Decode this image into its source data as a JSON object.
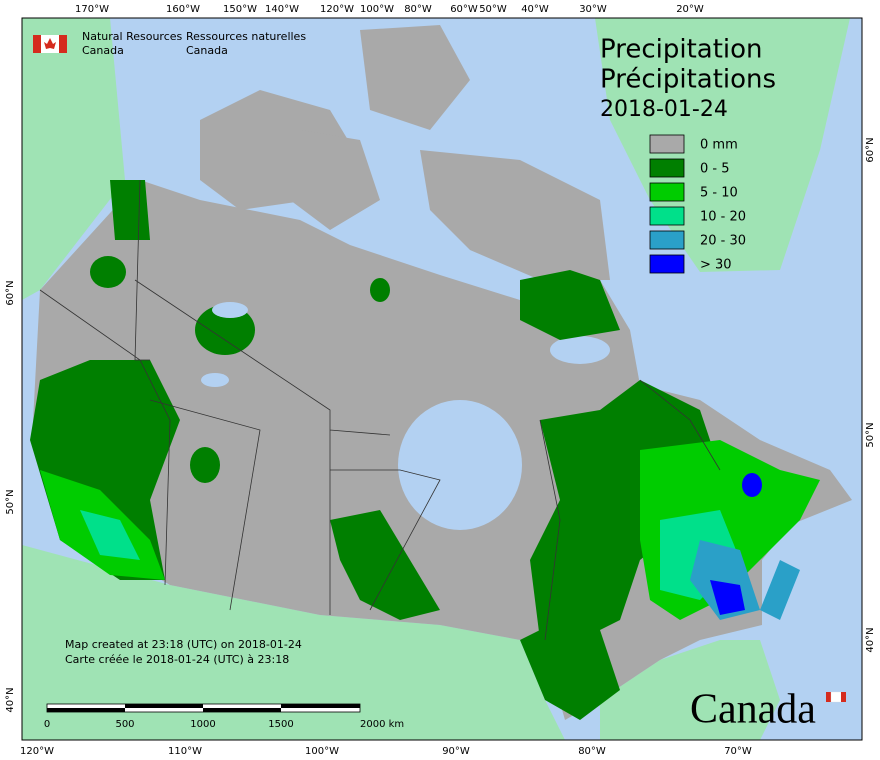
{
  "header": {
    "title_en": "Precipitation",
    "title_fr": "Précipitations",
    "date": "2018-01-24"
  },
  "agency": {
    "en_line1": "Natural Resources",
    "en_line2": "Canada",
    "fr_line1": "Ressources naturelles",
    "fr_line2": "Canada"
  },
  "legend": [
    {
      "label": "0 mm",
      "color": "#a9a9a9"
    },
    {
      "label": "0 - 5",
      "color": "#007f00"
    },
    {
      "label": "5 - 10",
      "color": "#00cc00"
    },
    {
      "label": "10 - 20",
      "color": "#00e08a"
    },
    {
      "label": "20 - 30",
      "color": "#2aa0c8"
    },
    {
      "label": "> 30",
      "color": "#0000ff"
    }
  ],
  "top_labels": [
    "170°W",
    "160°W",
    "150°W",
    "140°W",
    "120°W",
    "100°W",
    "80°W",
    "60°W",
    "50°W",
    "40°W",
    "30°W",
    "20°W"
  ],
  "bottom_labels": [
    "120°W",
    "110°W",
    "100°W",
    "90°W",
    "80°W",
    "70°W"
  ],
  "left_labels": [
    "60°N",
    "50°N",
    "40°N"
  ],
  "right_labels": [
    "60°N",
    "50°N",
    "40°N"
  ],
  "scale_labels": [
    "0",
    "500",
    "1000",
    "1500",
    "2000 km"
  ],
  "notes": [
    "Map created at 23:18 (UTC) on 2018-01-24",
    "Carte créée le 2018-01-24 (UTC) à 23:18"
  ],
  "wordmark": "Canada"
}
